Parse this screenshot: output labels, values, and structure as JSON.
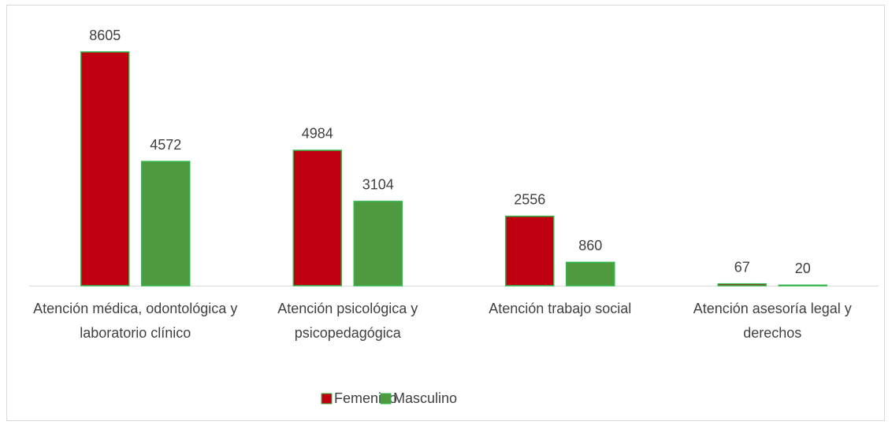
{
  "chart_data": {
    "type": "bar",
    "categories": [
      "Atención médica, odontológica y laboratorio clínico",
      "Atención psicológica y psicopedagógica",
      "Atención trabajo social",
      "Atención asesoría legal y derechos"
    ],
    "series": [
      {
        "name": "Femenino",
        "color": "#c00010",
        "values": [
          8605,
          4984,
          2556,
          67
        ]
      },
      {
        "name": "Masculino",
        "color": "#4f9a3f",
        "values": [
          4572,
          3104,
          860,
          20
        ]
      }
    ],
    "legend": "bottom"
  }
}
